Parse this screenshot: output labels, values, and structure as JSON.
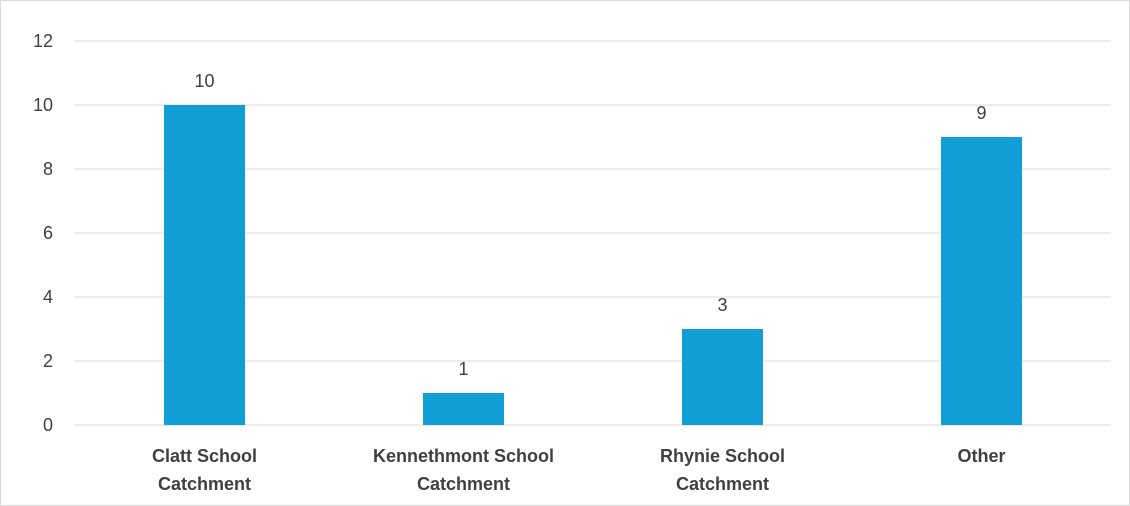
{
  "chart_data": {
    "type": "bar",
    "categories": [
      [
        "Clatt School",
        "Catchment"
      ],
      [
        "Kennethmont School",
        "Catchment"
      ],
      [
        "Rhynie School",
        "Catchment"
      ],
      [
        "Other"
      ]
    ],
    "values": [
      10,
      1,
      3,
      9
    ],
    "data_labels": [
      "10",
      "1",
      "3",
      "9"
    ],
    "ylim": [
      0,
      12
    ],
    "yticks": [
      0,
      2,
      4,
      6,
      8,
      10,
      12
    ],
    "ytick_labels": [
      "0",
      "2",
      "4",
      "6",
      "8",
      "10",
      "12"
    ],
    "grid": true,
    "legend": "none",
    "colors": {
      "bar": "#119ed6",
      "grid": "#d9d9d9",
      "text": "#404040"
    }
  }
}
